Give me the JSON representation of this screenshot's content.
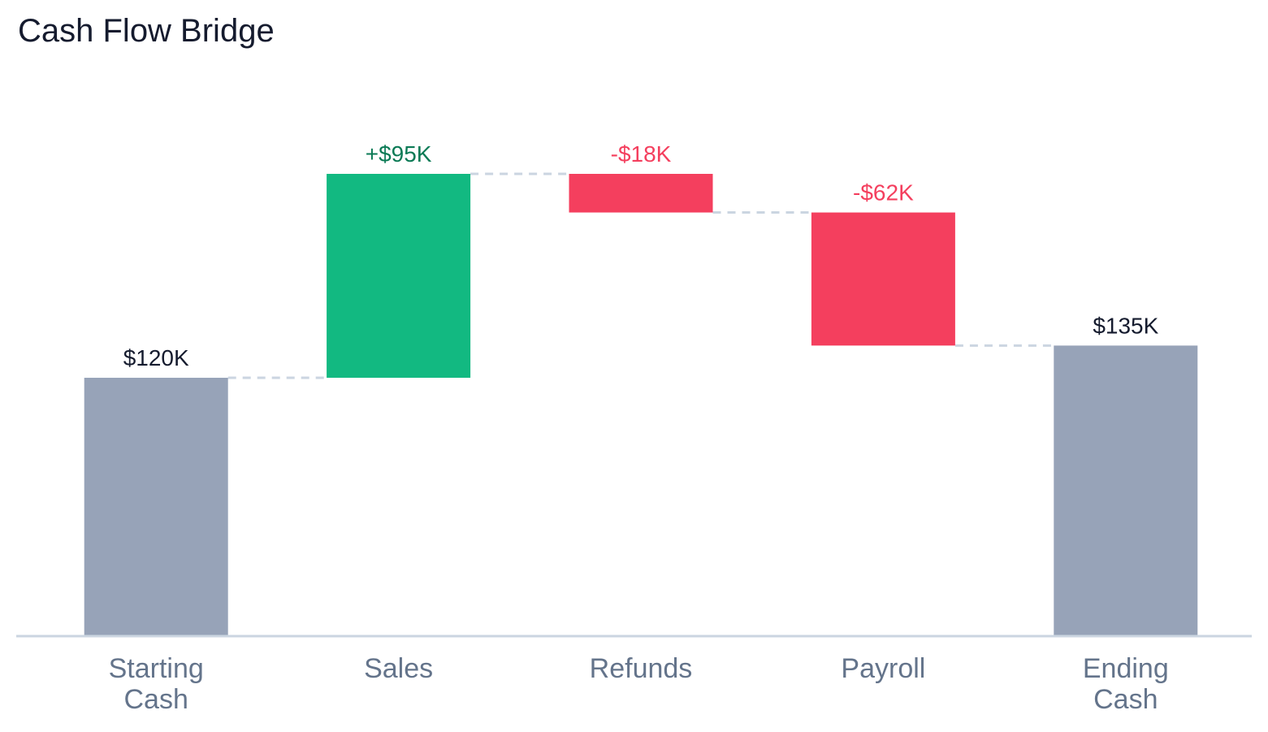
{
  "chart_data": {
    "type": "bar",
    "subtype": "waterfall",
    "title": "Cash Flow Bridge",
    "xlabel": "",
    "ylabel": "",
    "unit": "$K",
    "grid": false,
    "legend": "none",
    "categories": [
      [
        "Starting",
        "Cash"
      ],
      [
        "Sales"
      ],
      [
        "Refunds"
      ],
      [
        "Payroll"
      ],
      [
        "Ending",
        "Cash"
      ]
    ],
    "values": [
      120,
      95,
      -18,
      -62,
      135
    ],
    "kinds": [
      "total",
      "delta",
      "delta",
      "delta",
      "total"
    ],
    "data_labels": [
      "$120K",
      "+$95K",
      "-$18K",
      "-$62K",
      "$135K"
    ],
    "ylim": [
      0,
      215
    ],
    "colors": {
      "total": "#97a3b8",
      "increase": "#12b981",
      "decrease": "#f43f5e",
      "total_label": "#151b2e",
      "increase_label": "#0b7a55",
      "decrease_label": "#f43f5e",
      "category_label": "#64748b",
      "baseline": "#cbd5e1",
      "connector": "#cbd5e1"
    }
  }
}
